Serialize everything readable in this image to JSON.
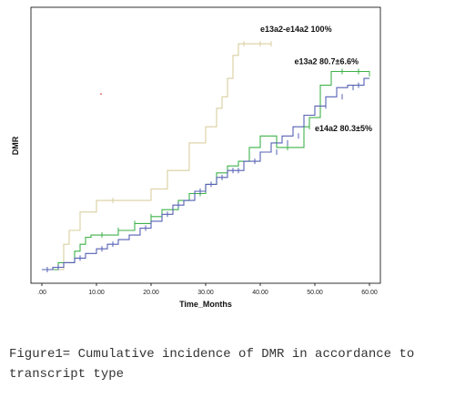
{
  "caption": "Figure1= Cumulative incidence of DMR in accordance to transcript type",
  "chart_data": {
    "type": "line",
    "step": true,
    "xlabel": "Time_Months",
    "ylabel": "DMR",
    "xlim": [
      -2,
      62
    ],
    "ylim": [
      0,
      1.02
    ],
    "x_ticks": [
      0,
      10,
      20,
      30,
      40,
      50,
      60
    ],
    "x_tick_labels": [
      ".00",
      "10.00",
      "20.00",
      "30.00",
      "40.00",
      "50.00",
      "60.00"
    ],
    "grid": false,
    "series": [
      {
        "name": "e13a2-e14a2 100%",
        "color": "#d9cfa0",
        "label_anchor": [
          40,
          1.0
        ],
        "points": [
          [
            0,
            0.0
          ],
          [
            4,
            0.0
          ],
          [
            4,
            0.11
          ],
          [
            5,
            0.11
          ],
          [
            5,
            0.17
          ],
          [
            7,
            0.17
          ],
          [
            7,
            0.25
          ],
          [
            10,
            0.25
          ],
          [
            10,
            0.3
          ],
          [
            12,
            0.3
          ],
          [
            12,
            0.3
          ],
          [
            20,
            0.3
          ],
          [
            20,
            0.35
          ],
          [
            23,
            0.35
          ],
          [
            23,
            0.43
          ],
          [
            25,
            0.43
          ],
          [
            25,
            0.43
          ],
          [
            27,
            0.43
          ],
          [
            27,
            0.55
          ],
          [
            30,
            0.55
          ],
          [
            30,
            0.62
          ],
          [
            32,
            0.62
          ],
          [
            32,
            0.7
          ],
          [
            33,
            0.7
          ],
          [
            33,
            0.75
          ],
          [
            34,
            0.75
          ],
          [
            34,
            0.83
          ],
          [
            35,
            0.83
          ],
          [
            35,
            0.93
          ],
          [
            36,
            0.93
          ],
          [
            36,
            0.98
          ],
          [
            42,
            0.98
          ]
        ],
        "censors": [
          [
            13,
            0.3
          ],
          [
            37,
            0.98
          ],
          [
            40,
            0.98
          ],
          [
            42,
            0.98
          ]
        ]
      },
      {
        "name": "e13a2 80.7±6.6%",
        "color": "#3fb24a",
        "label_anchor": [
          58,
          0.86
        ],
        "points": [
          [
            0,
            0.0
          ],
          [
            3,
            0.0
          ],
          [
            3,
            0.03
          ],
          [
            6,
            0.03
          ],
          [
            6,
            0.08
          ],
          [
            7,
            0.08
          ],
          [
            7,
            0.11
          ],
          [
            8,
            0.11
          ],
          [
            8,
            0.14
          ],
          [
            9,
            0.14
          ],
          [
            9,
            0.15
          ],
          [
            14,
            0.15
          ],
          [
            14,
            0.17
          ],
          [
            17,
            0.17
          ],
          [
            17,
            0.2
          ],
          [
            20,
            0.2
          ],
          [
            20,
            0.23
          ],
          [
            22,
            0.23
          ],
          [
            22,
            0.26
          ],
          [
            25,
            0.26
          ],
          [
            25,
            0.3
          ],
          [
            27,
            0.3
          ],
          [
            27,
            0.33
          ],
          [
            30,
            0.33
          ],
          [
            30,
            0.37
          ],
          [
            32,
            0.37
          ],
          [
            32,
            0.42
          ],
          [
            34,
            0.42
          ],
          [
            34,
            0.45
          ],
          [
            36,
            0.45
          ],
          [
            36,
            0.47
          ],
          [
            38,
            0.47
          ],
          [
            38,
            0.53
          ],
          [
            40,
            0.53
          ],
          [
            40,
            0.58
          ],
          [
            43,
            0.58
          ],
          [
            43,
            0.53
          ],
          [
            48,
            0.53
          ],
          [
            48,
            0.62
          ],
          [
            49,
            0.62
          ],
          [
            49,
            0.66
          ],
          [
            51,
            0.66
          ],
          [
            51,
            0.8
          ],
          [
            53,
            0.8
          ],
          [
            53,
            0.86
          ],
          [
            60,
            0.86
          ]
        ],
        "censors": [
          [
            11,
            0.15
          ],
          [
            14,
            0.17
          ],
          [
            17,
            0.2
          ],
          [
            20,
            0.23
          ],
          [
            29,
            0.33
          ],
          [
            34,
            0.42
          ],
          [
            37,
            0.45
          ],
          [
            45,
            0.53
          ],
          [
            49,
            0.62
          ],
          [
            51,
            0.7
          ],
          [
            55,
            0.86
          ],
          [
            58,
            0.86
          ],
          [
            60,
            0.85
          ]
        ]
      },
      {
        "name": "e14a2 80.3±5%",
        "color": "#5560b4",
        "label_anchor": [
          50,
          0.57
        ],
        "points": [
          [
            0,
            0.0
          ],
          [
            2,
            0.0
          ],
          [
            2,
            0.01
          ],
          [
            4,
            0.01
          ],
          [
            4,
            0.03
          ],
          [
            6,
            0.03
          ],
          [
            6,
            0.05
          ],
          [
            8,
            0.05
          ],
          [
            8,
            0.07
          ],
          [
            10,
            0.07
          ],
          [
            10,
            0.09
          ],
          [
            12,
            0.09
          ],
          [
            12,
            0.11
          ],
          [
            14,
            0.11
          ],
          [
            14,
            0.13
          ],
          [
            16,
            0.13
          ],
          [
            16,
            0.15
          ],
          [
            18,
            0.15
          ],
          [
            18,
            0.18
          ],
          [
            20,
            0.18
          ],
          [
            20,
            0.21
          ],
          [
            22,
            0.21
          ],
          [
            22,
            0.24
          ],
          [
            24,
            0.24
          ],
          [
            24,
            0.28
          ],
          [
            26,
            0.28
          ],
          [
            26,
            0.3
          ],
          [
            28,
            0.3
          ],
          [
            28,
            0.34
          ],
          [
            30,
            0.34
          ],
          [
            30,
            0.37
          ],
          [
            32,
            0.37
          ],
          [
            32,
            0.4
          ],
          [
            34,
            0.4
          ],
          [
            34,
            0.43
          ],
          [
            37,
            0.43
          ],
          [
            37,
            0.47
          ],
          [
            40,
            0.47
          ],
          [
            40,
            0.51
          ],
          [
            42,
            0.51
          ],
          [
            42,
            0.55
          ],
          [
            44,
            0.55
          ],
          [
            44,
            0.58
          ],
          [
            46,
            0.58
          ],
          [
            46,
            0.62
          ],
          [
            48,
            0.62
          ],
          [
            48,
            0.67
          ],
          [
            50,
            0.67
          ],
          [
            50,
            0.71
          ],
          [
            52,
            0.71
          ],
          [
            52,
            0.75
          ],
          [
            54,
            0.75
          ],
          [
            54,
            0.79
          ],
          [
            56,
            0.79
          ],
          [
            56,
            0.8
          ],
          [
            59,
            0.8
          ],
          [
            59,
            0.83
          ],
          [
            60,
            0.83
          ]
        ],
        "censors": [
          [
            1,
            0.0
          ],
          [
            3,
            0.01
          ],
          [
            7,
            0.05
          ],
          [
            11,
            0.09
          ],
          [
            13,
            0.11
          ],
          [
            19,
            0.18
          ],
          [
            23,
            0.24
          ],
          [
            25,
            0.28
          ],
          [
            29,
            0.34
          ],
          [
            30,
            0.35
          ],
          [
            31,
            0.37
          ],
          [
            33,
            0.4
          ],
          [
            35,
            0.43
          ],
          [
            36,
            0.43
          ],
          [
            39,
            0.47
          ],
          [
            43,
            0.51
          ],
          [
            45,
            0.55
          ],
          [
            47,
            0.58
          ],
          [
            52,
            0.71
          ],
          [
            55,
            0.75
          ],
          [
            57,
            0.79
          ],
          [
            58,
            0.8
          ]
        ]
      }
    ],
    "annotations": [
      {
        "text": ".",
        "color": "#e0302a",
        "at": [
          10.5,
          0.76
        ]
      }
    ]
  }
}
